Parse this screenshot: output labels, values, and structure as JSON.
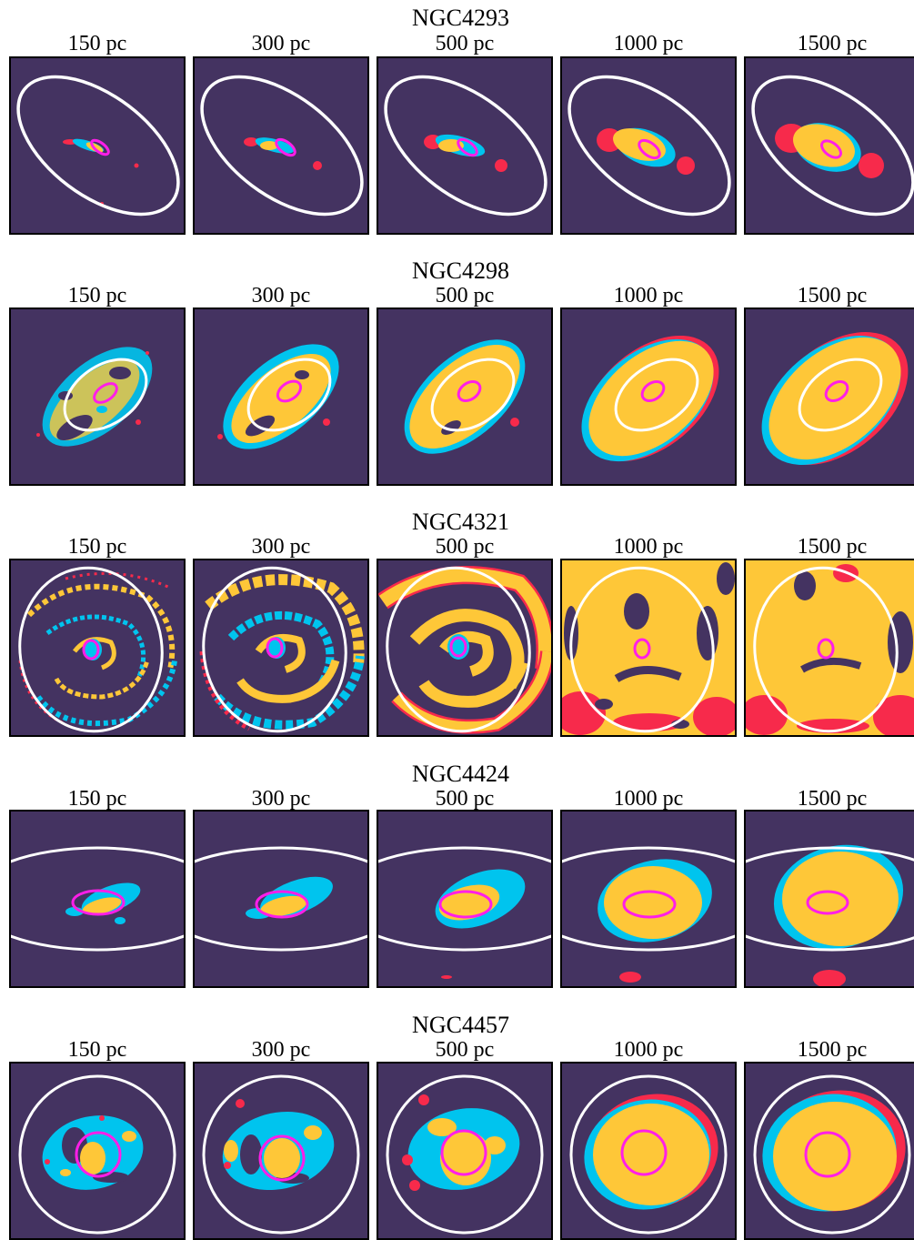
{
  "figure": {
    "rows": [
      {
        "galaxy": "NGC4293",
        "scales": [
          "150 pc",
          "300 pc",
          "500 pc",
          "1000 pc",
          "1500 pc"
        ]
      },
      {
        "galaxy": "NGC4298",
        "scales": [
          "150 pc",
          "300 pc",
          "500 pc",
          "1000 pc",
          "1500 pc"
        ]
      },
      {
        "galaxy": "NGC4321",
        "scales": [
          "150 pc",
          "300 pc",
          "500 pc",
          "1000 pc",
          "1500 pc"
        ]
      },
      {
        "galaxy": "NGC4424",
        "scales": [
          "150 pc",
          "300 pc",
          "500 pc",
          "1000 pc",
          "1500 pc"
        ]
      },
      {
        "galaxy": "NGC4457",
        "scales": [
          "150 pc",
          "300 pc",
          "500 pc",
          "1000 pc",
          "1500 pc"
        ]
      }
    ],
    "colors": {
      "background": "#443361",
      "red_region": "#f72a4b",
      "cyan_region": "#00c4ee",
      "yellow_region": "#fec738",
      "outer_ellipse": "#ffffff",
      "inner_ellipse": "#ff1ee8",
      "panel_border": "#000000"
    }
  }
}
